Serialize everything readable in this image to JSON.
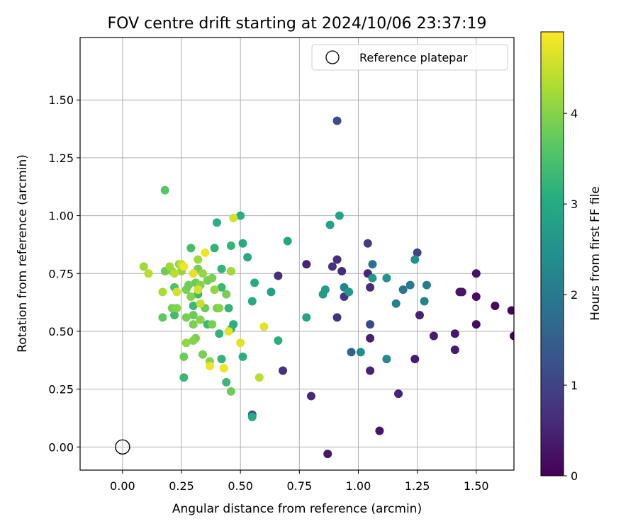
{
  "chart_data": {
    "type": "scatter",
    "title": "FOV centre drift starting at 2024/10/06 23:37:19",
    "xlabel": "Angular distance from reference (arcmin)",
    "ylabel": "Rotation from reference (arcmin)",
    "xlim": [
      -0.18,
      1.66
    ],
    "ylim": [
      -0.1,
      1.77
    ],
    "xticks": [
      "0.00",
      "0.25",
      "0.50",
      "0.75",
      "1.00",
      "1.25",
      "1.50"
    ],
    "xtick_values": [
      0,
      0.25,
      0.5,
      0.75,
      1.0,
      1.25,
      1.5
    ],
    "yticks": [
      "0.00",
      "0.25",
      "0.50",
      "0.75",
      "1.00",
      "1.25",
      "1.50"
    ],
    "ytick_values": [
      0,
      0.25,
      0.5,
      0.75,
      1.0,
      1.25,
      1.5
    ],
    "grid": true,
    "colormap": "viridis",
    "colorbar": {
      "label": "Hours from first FF file",
      "range": [
        0,
        4.9
      ],
      "ticks": [
        "0",
        "1",
        "2",
        "3",
        "4"
      ],
      "tick_values": [
        0,
        1,
        2,
        3,
        4
      ]
    },
    "legend": {
      "position": "top-right",
      "entries": [
        "Reference platepar"
      ]
    },
    "reference_point": {
      "x": 0,
      "y": 0
    },
    "points": [
      {
        "x": 1.66,
        "y": 0.48,
        "h": 0.05
      },
      {
        "x": 1.65,
        "y": 0.59,
        "h": 0.1
      },
      {
        "x": 1.58,
        "y": 0.61,
        "h": 0.15
      },
      {
        "x": 1.5,
        "y": 0.53,
        "h": 0.2
      },
      {
        "x": 1.5,
        "y": 0.65,
        "h": 0.22
      },
      {
        "x": 1.5,
        "y": 0.75,
        "h": 0.25
      },
      {
        "x": 1.44,
        "y": 0.67,
        "h": 0.3
      },
      {
        "x": 1.43,
        "y": 0.67,
        "h": 0.32
      },
      {
        "x": 1.41,
        "y": 0.49,
        "h": 0.35
      },
      {
        "x": 1.41,
        "y": 0.42,
        "h": 0.38
      },
      {
        "x": 1.32,
        "y": 0.48,
        "h": 0.4
      },
      {
        "x": 1.26,
        "y": 0.57,
        "h": 0.45
      },
      {
        "x": 1.24,
        "y": 0.38,
        "h": 0.4
      },
      {
        "x": 1.17,
        "y": 0.23,
        "h": 0.5
      },
      {
        "x": 1.09,
        "y": 0.07,
        "h": 0.3
      },
      {
        "x": 0.87,
        "y": -0.03,
        "h": 0.35
      },
      {
        "x": 1.05,
        "y": 0.47,
        "h": 0.45
      },
      {
        "x": 1.05,
        "y": 0.33,
        "h": 0.5
      },
      {
        "x": 1.05,
        "y": 0.69,
        "h": 0.6
      },
      {
        "x": 1.04,
        "y": 0.75,
        "h": 0.55
      },
      {
        "x": 0.93,
        "y": 0.76,
        "h": 0.6
      },
      {
        "x": 0.91,
        "y": 0.81,
        "h": 0.65
      },
      {
        "x": 0.89,
        "y": 0.78,
        "h": 0.7
      },
      {
        "x": 0.91,
        "y": 0.56,
        "h": 0.75
      },
      {
        "x": 0.78,
        "y": 0.79,
        "h": 0.5
      },
      {
        "x": 0.8,
        "y": 0.22,
        "h": 0.6
      },
      {
        "x": 0.68,
        "y": 0.33,
        "h": 0.7
      },
      {
        "x": 0.66,
        "y": 0.74,
        "h": 0.65
      },
      {
        "x": 0.94,
        "y": 0.65,
        "h": 0.8
      },
      {
        "x": 1.04,
        "y": 0.88,
        "h": 0.9
      },
      {
        "x": 1.25,
        "y": 0.84,
        "h": 1.0
      },
      {
        "x": 1.05,
        "y": 0.53,
        "h": 1.1
      },
      {
        "x": 0.91,
        "y": 1.41,
        "h": 1.15
      },
      {
        "x": 0.55,
        "y": 0.14,
        "h": 1.3
      },
      {
        "x": 0.97,
        "y": 0.41,
        "h": 1.6
      },
      {
        "x": 1.01,
        "y": 0.41,
        "h": 2.4
      },
      {
        "x": 1.06,
        "y": 0.79,
        "h": 1.9
      },
      {
        "x": 1.19,
        "y": 0.68,
        "h": 1.9
      },
      {
        "x": 1.22,
        "y": 0.7,
        "h": 2.0
      },
      {
        "x": 1.29,
        "y": 0.7,
        "h": 2.1
      },
      {
        "x": 1.28,
        "y": 0.63,
        "h": 2.2
      },
      {
        "x": 1.16,
        "y": 0.62,
        "h": 2.2
      },
      {
        "x": 1.12,
        "y": 0.38,
        "h": 2.3
      },
      {
        "x": 1.12,
        "y": 0.73,
        "h": 2.5
      },
      {
        "x": 1.06,
        "y": 0.73,
        "h": 2.6
      },
      {
        "x": 0.94,
        "y": 0.69,
        "h": 2.2
      },
      {
        "x": 1.24,
        "y": 0.81,
        "h": 2.5
      },
      {
        "x": 0.96,
        "y": 0.67,
        "h": 2.6
      },
      {
        "x": 0.86,
        "y": 0.68,
        "h": 2.7
      },
      {
        "x": 0.85,
        "y": 0.66,
        "h": 2.7
      },
      {
        "x": 0.88,
        "y": 0.96,
        "h": 2.8
      },
      {
        "x": 0.92,
        "y": 1.0,
        "h": 2.9
      },
      {
        "x": 0.78,
        "y": 0.56,
        "h": 2.9
      },
      {
        "x": 0.7,
        "y": 0.89,
        "h": 2.9
      },
      {
        "x": 0.63,
        "y": 0.67,
        "h": 2.8
      },
      {
        "x": 0.55,
        "y": 0.13,
        "h": 3.0
      },
      {
        "x": 0.56,
        "y": 0.71,
        "h": 3.0
      },
      {
        "x": 0.55,
        "y": 0.63,
        "h": 3.0
      },
      {
        "x": 0.53,
        "y": 0.82,
        "h": 3.0
      },
      {
        "x": 0.51,
        "y": 0.39,
        "h": 3.1
      },
      {
        "x": 0.51,
        "y": 0.88,
        "h": 3.0
      },
      {
        "x": 0.5,
        "y": 1.0,
        "h": 3.1
      },
      {
        "x": 0.47,
        "y": 0.53,
        "h": 3.1
      },
      {
        "x": 0.46,
        "y": 0.87,
        "h": 3.2
      },
      {
        "x": 0.45,
        "y": 0.6,
        "h": 3.2
      },
      {
        "x": 0.46,
        "y": 0.51,
        "h": 3.2
      },
      {
        "x": 0.42,
        "y": 0.77,
        "h": 3.2
      },
      {
        "x": 0.41,
        "y": 0.49,
        "h": 3.2
      },
      {
        "x": 0.4,
        "y": 0.97,
        "h": 3.1
      },
      {
        "x": 0.42,
        "y": 0.38,
        "h": 3.2
      },
      {
        "x": 0.42,
        "y": 0.69,
        "h": 3.3
      },
      {
        "x": 0.44,
        "y": 0.28,
        "h": 3.3
      },
      {
        "x": 0.39,
        "y": 0.86,
        "h": 3.2
      },
      {
        "x": 0.36,
        "y": 0.53,
        "h": 3.3
      },
      {
        "x": 0.32,
        "y": 0.66,
        "h": 3.3
      },
      {
        "x": 0.3,
        "y": 0.61,
        "h": 3.3
      },
      {
        "x": 0.29,
        "y": 0.86,
        "h": 3.4
      },
      {
        "x": 0.26,
        "y": 0.3,
        "h": 3.3
      },
      {
        "x": 0.22,
        "y": 0.57,
        "h": 3.4
      },
      {
        "x": 0.22,
        "y": 0.69,
        "h": 3.5
      },
      {
        "x": 0.18,
        "y": 1.11,
        "h": 3.6
      },
      {
        "x": 0.66,
        "y": 0.46,
        "h": 3.1
      },
      {
        "x": 0.17,
        "y": 0.56,
        "h": 3.7
      },
      {
        "x": 0.18,
        "y": 0.76,
        "h": 3.8
      },
      {
        "x": 0.21,
        "y": 0.76,
        "h": 3.9
      },
      {
        "x": 0.24,
        "y": 0.79,
        "h": 4.1
      },
      {
        "x": 0.2,
        "y": 0.78,
        "h": 4.2
      },
      {
        "x": 0.21,
        "y": 0.6,
        "h": 3.9
      },
      {
        "x": 0.23,
        "y": 0.6,
        "h": 4.0
      },
      {
        "x": 0.25,
        "y": 0.76,
        "h": 4.1
      },
      {
        "x": 0.27,
        "y": 0.68,
        "h": 3.9
      },
      {
        "x": 0.28,
        "y": 0.7,
        "h": 3.8
      },
      {
        "x": 0.29,
        "y": 0.65,
        "h": 4.0
      },
      {
        "x": 0.3,
        "y": 0.57,
        "h": 3.8
      },
      {
        "x": 0.3,
        "y": 0.53,
        "h": 3.9
      },
      {
        "x": 0.31,
        "y": 0.47,
        "h": 3.9
      },
      {
        "x": 0.31,
        "y": 0.71,
        "h": 3.8
      },
      {
        "x": 0.32,
        "y": 0.77,
        "h": 3.9
      },
      {
        "x": 0.32,
        "y": 0.81,
        "h": 4.2
      },
      {
        "x": 0.33,
        "y": 0.55,
        "h": 4.0
      },
      {
        "x": 0.33,
        "y": 0.7,
        "h": 4.0
      },
      {
        "x": 0.34,
        "y": 0.75,
        "h": 4.1
      },
      {
        "x": 0.34,
        "y": 0.4,
        "h": 3.9
      },
      {
        "x": 0.35,
        "y": 0.6,
        "h": 3.8
      },
      {
        "x": 0.36,
        "y": 0.72,
        "h": 3.9
      },
      {
        "x": 0.37,
        "y": 0.37,
        "h": 4.0
      },
      {
        "x": 0.38,
        "y": 0.53,
        "h": 3.9
      },
      {
        "x": 0.38,
        "y": 0.73,
        "h": 3.9
      },
      {
        "x": 0.39,
        "y": 0.68,
        "h": 4.1
      },
      {
        "x": 0.4,
        "y": 0.6,
        "h": 3.9
      },
      {
        "x": 0.41,
        "y": 0.6,
        "h": 4.0
      },
      {
        "x": 0.44,
        "y": 0.66,
        "h": 3.9
      },
      {
        "x": 0.46,
        "y": 0.76,
        "h": 4.2
      },
      {
        "x": 0.46,
        "y": 0.24,
        "h": 3.8
      },
      {
        "x": 0.26,
        "y": 0.39,
        "h": 3.8
      },
      {
        "x": 0.27,
        "y": 0.56,
        "h": 3.9
      },
      {
        "x": 0.27,
        "y": 0.45,
        "h": 4.1
      },
      {
        "x": 0.3,
        "y": 0.46,
        "h": 4.0
      },
      {
        "x": 0.09,
        "y": 0.78,
        "h": 4.2
      },
      {
        "x": 0.11,
        "y": 0.75,
        "h": 4.4
      },
      {
        "x": 0.17,
        "y": 0.67,
        "h": 4.3
      },
      {
        "x": 0.22,
        "y": 0.75,
        "h": 4.4
      },
      {
        "x": 0.23,
        "y": 0.67,
        "h": 4.6
      },
      {
        "x": 0.25,
        "y": 0.79,
        "h": 4.5
      },
      {
        "x": 0.26,
        "y": 0.78,
        "h": 4.8
      },
      {
        "x": 0.3,
        "y": 0.75,
        "h": 4.7
      },
      {
        "x": 0.32,
        "y": 0.68,
        "h": 4.6
      },
      {
        "x": 0.33,
        "y": 0.62,
        "h": 4.5
      },
      {
        "x": 0.35,
        "y": 0.84,
        "h": 4.8
      },
      {
        "x": 0.37,
        "y": 0.35,
        "h": 4.8
      },
      {
        "x": 0.43,
        "y": 0.34,
        "h": 4.8
      },
      {
        "x": 0.45,
        "y": 0.5,
        "h": 4.7
      },
      {
        "x": 0.47,
        "y": 0.99,
        "h": 4.6
      },
      {
        "x": 0.5,
        "y": 0.45,
        "h": 4.7
      },
      {
        "x": 0.58,
        "y": 0.3,
        "h": 4.4
      },
      {
        "x": 0.6,
        "y": 0.52,
        "h": 4.7
      }
    ]
  }
}
